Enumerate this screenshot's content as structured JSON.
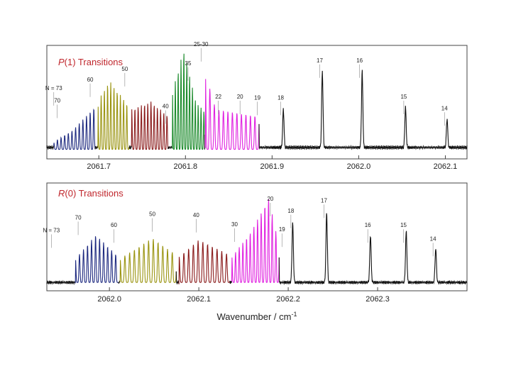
{
  "chart_data": {
    "type": "line",
    "xlabel": "Wavenumber / cm",
    "xlabel_superscript": "-1",
    "panels": [
      {
        "title_italic": "P",
        "title_rest": "(1) Transitions",
        "xlim": [
          2061.64,
          2062.125
        ],
        "ticks": [
          {
            "value": 2061.7,
            "label": "2061.7"
          },
          {
            "value": 2061.8,
            "label": "2061.8"
          },
          {
            "value": 2061.9,
            "label": "2061.9"
          },
          {
            "value": 2062.0,
            "label": "2062.0"
          },
          {
            "value": 2062.1,
            "label": "2062.1"
          }
        ],
        "baseline_intensity": 0.06,
        "segments": [
          {
            "name": "N 73-61",
            "color": "#1e2a80",
            "start": 2061.648,
            "end": 2061.696,
            "spacing": 0.0042,
            "env": [
              [
                2061.648,
                0.08
              ],
              [
                2061.67,
                0.2
              ],
              [
                2061.696,
                0.45
              ]
            ]
          },
          {
            "name": "N 60-51",
            "color": "#9a9410",
            "start": 2061.699,
            "end": 2061.735,
            "spacing": 0.0037,
            "env": [
              [
                2061.699,
                0.5
              ],
              [
                2061.712,
                0.72
              ],
              [
                2061.735,
                0.45
              ]
            ]
          },
          {
            "name": "N 50-41",
            "color": "#8a1a1a",
            "start": 2061.738,
            "end": 2061.78,
            "spacing": 0.0037,
            "env": [
              [
                2061.738,
                0.42
              ],
              [
                2061.76,
                0.5
              ],
              [
                2061.78,
                0.35
              ]
            ]
          },
          {
            "name": "N 40-36",
            "color": "#1a8a2a",
            "start": 2061.785,
            "end": 2061.822,
            "spacing": 0.0033,
            "env": [
              [
                2061.785,
                0.6
              ],
              [
                2061.798,
                1.05
              ],
              [
                2061.812,
                0.5
              ],
              [
                2061.822,
                0.4
              ]
            ]
          },
          {
            "name": "N 35-19",
            "color": "#e020e0",
            "start": 2061.823,
            "end": 2061.885,
            "spacing": 0.0052,
            "env": [
              [
                2061.823,
                0.8
              ],
              [
                2061.835,
                0.42
              ],
              [
                2061.885,
                0.34
              ]
            ]
          }
        ],
        "peaks": [
          {
            "x": 2061.913,
            "y": 0.4,
            "label": "18"
          },
          {
            "x": 2061.958,
            "y": 0.8,
            "label": "17"
          },
          {
            "x": 2062.004,
            "y": 0.8,
            "label": "16"
          },
          {
            "x": 2062.054,
            "y": 0.42,
            "label": "15"
          },
          {
            "x": 2062.102,
            "y": 0.3,
            "label": "14"
          }
        ],
        "annotations": [
          {
            "x": 2061.648,
            "y": 0.66,
            "text": "N = 73"
          },
          {
            "x": 2061.652,
            "y": 0.53,
            "text": "70"
          },
          {
            "x": 2061.69,
            "y": 0.75,
            "text": "60"
          },
          {
            "x": 2061.73,
            "y": 0.86,
            "text": "50"
          },
          {
            "x": 2061.777,
            "y": 0.47,
            "text": "40"
          },
          {
            "x": 2061.803,
            "y": 0.92,
            "text": "35"
          },
          {
            "x": 2061.818,
            "y": 1.12,
            "text": "25-30"
          },
          {
            "x": 2061.838,
            "y": 0.57,
            "text": "22"
          },
          {
            "x": 2061.863,
            "y": 0.57,
            "text": "20"
          },
          {
            "x": 2061.883,
            "y": 0.56,
            "text": "19"
          },
          {
            "x": 2061.91,
            "y": 0.56,
            "text": "18"
          },
          {
            "x": 2061.955,
            "y": 0.95,
            "text": "17"
          },
          {
            "x": 2062.001,
            "y": 0.95,
            "text": "16"
          },
          {
            "x": 2062.052,
            "y": 0.57,
            "text": "15"
          },
          {
            "x": 2062.099,
            "y": 0.45,
            "text": "14"
          }
        ]
      },
      {
        "title_italic": "R",
        "title_rest": "(0) Transitions",
        "xlim": [
          2061.93,
          2062.4
        ],
        "ticks": [
          {
            "value": 2062.0,
            "label": "2062.0"
          },
          {
            "value": 2062.1,
            "label": "2062.1"
          },
          {
            "value": 2062.2,
            "label": "2062.2"
          },
          {
            "value": 2062.3,
            "label": "2062.3"
          }
        ],
        "baseline_intensity": 0.04,
        "segments": [
          {
            "name": "N 73-61",
            "color": "#1e2a80",
            "start": 2061.962,
            "end": 2062.01,
            "spacing": 0.0045,
            "env": [
              [
                2061.962,
                0.28
              ],
              [
                2061.985,
                0.56
              ],
              [
                2062.01,
                0.3
              ]
            ]
          },
          {
            "name": "N 60-51",
            "color": "#9a9410",
            "start": 2062.012,
            "end": 2062.075,
            "spacing": 0.0053,
            "env": [
              [
                2062.012,
                0.28
              ],
              [
                2062.048,
                0.52
              ],
              [
                2062.075,
                0.32
              ]
            ]
          },
          {
            "name": "N 50-41",
            "color": "#8a1a1a",
            "start": 2062.078,
            "end": 2062.135,
            "spacing": 0.0053,
            "env": [
              [
                2062.078,
                0.3
              ],
              [
                2062.1,
                0.5
              ],
              [
                2062.135,
                0.32
              ]
            ]
          },
          {
            "name": "N 40-19",
            "color": "#e020e0",
            "start": 2062.137,
            "end": 2062.19,
            "spacing": 0.0041,
            "env": [
              [
                2062.137,
                0.3
              ],
              [
                2062.16,
                0.62
              ],
              [
                2062.178,
                1.0
              ],
              [
                2062.19,
                0.42
              ]
            ]
          }
        ],
        "peaks": [
          {
            "x": 2062.205,
            "y": 0.7,
            "label": "18"
          },
          {
            "x": 2062.243,
            "y": 0.82,
            "label": "17"
          },
          {
            "x": 2062.292,
            "y": 0.55,
            "label": "16"
          },
          {
            "x": 2062.332,
            "y": 0.6,
            "label": "15"
          },
          {
            "x": 2062.365,
            "y": 0.4,
            "label": "14"
          }
        ],
        "annotations": [
          {
            "x": 2061.935,
            "y": 0.63,
            "text": "N = 73"
          },
          {
            "x": 2061.965,
            "y": 0.78,
            "text": "70"
          },
          {
            "x": 2062.005,
            "y": 0.69,
            "text": "60"
          },
          {
            "x": 2062.048,
            "y": 0.82,
            "text": "50"
          },
          {
            "x": 2062.097,
            "y": 0.81,
            "text": "40"
          },
          {
            "x": 2062.14,
            "y": 0.7,
            "text": "30"
          },
          {
            "x": 2062.18,
            "y": 1.0,
            "text": "20"
          },
          {
            "x": 2062.193,
            "y": 0.64,
            "text": "19"
          },
          {
            "x": 2062.203,
            "y": 0.86,
            "text": "18"
          },
          {
            "x": 2062.24,
            "y": 0.98,
            "text": "17"
          },
          {
            "x": 2062.289,
            "y": 0.69,
            "text": "16"
          },
          {
            "x": 2062.329,
            "y": 0.69,
            "text": "15"
          },
          {
            "x": 2062.362,
            "y": 0.53,
            "text": "14"
          }
        ]
      }
    ]
  }
}
